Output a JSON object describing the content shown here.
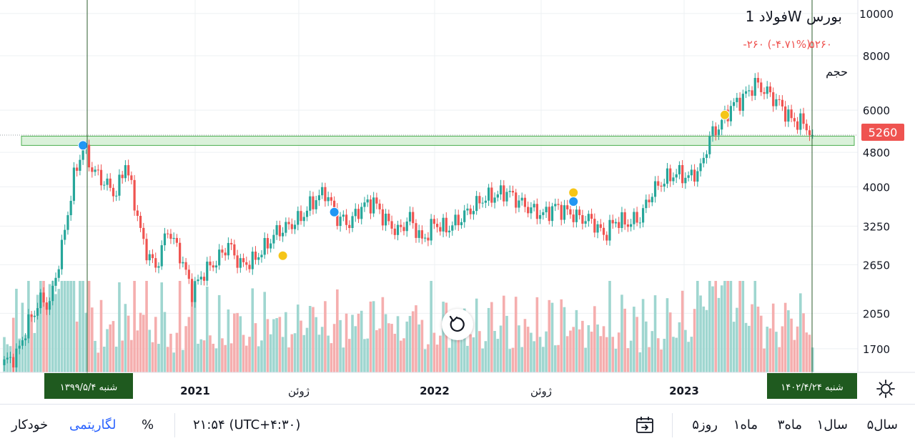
{
  "legend": {
    "symbol": "فولاد 1W بورس",
    "price": "۵۲۶۰",
    "change": "-۲۶۰ (-۴.۷۱%)",
    "volume_label": "حجم"
  },
  "crosshair": {
    "left_date": "شنبه ۱۳۹۹/۵/۴",
    "right_date": "شنبه ۱۴۰۲/۴/۲۴"
  },
  "last_price_label": "5260",
  "colors": {
    "up": "#26a69a",
    "down": "#ef5350",
    "volume_up": "#9fd6d0",
    "volume_down": "#f5aeae",
    "zone_fill": "#cdeccd",
    "zone_stroke": "#4caf50",
    "crosshair": "#2e5d2e",
    "label_bg": "#1f5a1f",
    "price_label_bg": "#ef5350",
    "marker_blue": "#2196f3",
    "marker_yellow": "#f5c518"
  },
  "toolbar": {
    "ranges": [
      "۵سال",
      "۱سال",
      "۳ماه",
      "۱ماه",
      "۵روز"
    ],
    "time": "۲۱:۵۴ (UTC+۴:۳۰)",
    "percent": "%",
    "log": "لگاریتمی",
    "auto": "خودکار"
  },
  "icons": {
    "settings": "gear-icon",
    "calendar": "calendar-goto-icon",
    "reset": "reset-chart-icon"
  },
  "chart_data": {
    "type": "candlestick",
    "scale": "log",
    "title": "فولاد 1W بورس",
    "ylim": [
      1500,
      10500
    ],
    "y_ticks": [
      1700,
      2050,
      2650,
      3250,
      4000,
      4800,
      6000,
      8000,
      10000
    ],
    "x_ticks": [
      "2021",
      "ژوئن",
      "2022",
      "ژوئن",
      "2023"
    ],
    "last_price": 5260,
    "zone": [
      4980,
      5230
    ],
    "anchors": [
      {
        "t": 0,
        "p": 1580
      },
      {
        "t": 4,
        "p": 1640
      },
      {
        "t": 8,
        "p": 1950
      },
      {
        "t": 12,
        "p": 2200
      },
      {
        "t": 15,
        "p": 2150
      },
      {
        "t": 19,
        "p": 2900
      },
      {
        "t": 23,
        "p": 4200
      },
      {
        "t": 26,
        "p": 4950
      },
      {
        "t": 29,
        "p": 4400
      },
      {
        "t": 33,
        "p": 4100
      },
      {
        "t": 37,
        "p": 3850
      },
      {
        "t": 40,
        "p": 4550
      },
      {
        "t": 43,
        "p": 3700
      },
      {
        "t": 46,
        "p": 2950
      },
      {
        "t": 50,
        "p": 2600
      },
      {
        "t": 54,
        "p": 3200
      },
      {
        "t": 58,
        "p": 2800
      },
      {
        "t": 62,
        "p": 2300
      },
      {
        "t": 66,
        "p": 2550
      },
      {
        "t": 70,
        "p": 2700
      },
      {
        "t": 74,
        "p": 2950
      },
      {
        "t": 78,
        "p": 2650
      },
      {
        "t": 82,
        "p": 2700
      },
      {
        "t": 86,
        "p": 2900
      },
      {
        "t": 90,
        "p": 3150
      },
      {
        "t": 94,
        "p": 3250
      },
      {
        "t": 98,
        "p": 3400
      },
      {
        "t": 102,
        "p": 3700
      },
      {
        "t": 106,
        "p": 3900
      },
      {
        "t": 110,
        "p": 3400
      },
      {
        "t": 114,
        "p": 3300
      },
      {
        "t": 118,
        "p": 3600
      },
      {
        "t": 122,
        "p": 3700
      },
      {
        "t": 126,
        "p": 3350
      },
      {
        "t": 130,
        "p": 3150
      },
      {
        "t": 134,
        "p": 3400
      },
      {
        "t": 138,
        "p": 3000
      },
      {
        "t": 142,
        "p": 3300
      },
      {
        "t": 146,
        "p": 3200
      },
      {
        "t": 150,
        "p": 3350
      },
      {
        "t": 154,
        "p": 3550
      },
      {
        "t": 158,
        "p": 3750
      },
      {
        "t": 162,
        "p": 3820
      },
      {
        "t": 166,
        "p": 3900
      },
      {
        "t": 170,
        "p": 3700
      },
      {
        "t": 174,
        "p": 3550
      },
      {
        "t": 178,
        "p": 3450
      },
      {
        "t": 182,
        "p": 3600
      },
      {
        "t": 186,
        "p": 3500
      },
      {
        "t": 190,
        "p": 3400
      },
      {
        "t": 194,
        "p": 3350
      },
      {
        "t": 198,
        "p": 3100
      },
      {
        "t": 202,
        "p": 3350
      },
      {
        "t": 206,
        "p": 3300
      },
      {
        "t": 210,
        "p": 3400
      },
      {
        "t": 214,
        "p": 3900
      },
      {
        "t": 218,
        "p": 4150
      },
      {
        "t": 222,
        "p": 4300
      },
      {
        "t": 226,
        "p": 4200
      },
      {
        "t": 230,
        "p": 4400
      },
      {
        "t": 233,
        "p": 5200
      },
      {
        "t": 236,
        "p": 5500
      },
      {
        "t": 240,
        "p": 6100
      },
      {
        "t": 244,
        "p": 6400
      },
      {
        "t": 248,
        "p": 6900
      },
      {
        "t": 252,
        "p": 6600
      },
      {
        "t": 256,
        "p": 6200
      },
      {
        "t": 260,
        "p": 5700
      },
      {
        "t": 264,
        "p": 5600
      },
      {
        "t": 267,
        "p": 5260
      }
    ],
    "markers": [
      {
        "t": 26,
        "p": 4980,
        "color": "blue"
      },
      {
        "t": 92,
        "p": 2780,
        "color": "yellow"
      },
      {
        "t": 109,
        "p": 3500,
        "color": "blue"
      },
      {
        "t": 188,
        "p": 3880,
        "color": "yellow"
      },
      {
        "t": 188,
        "p": 3700,
        "color": "blue"
      },
      {
        "t": 238,
        "p": 5850,
        "color": "yellow"
      }
    ]
  }
}
